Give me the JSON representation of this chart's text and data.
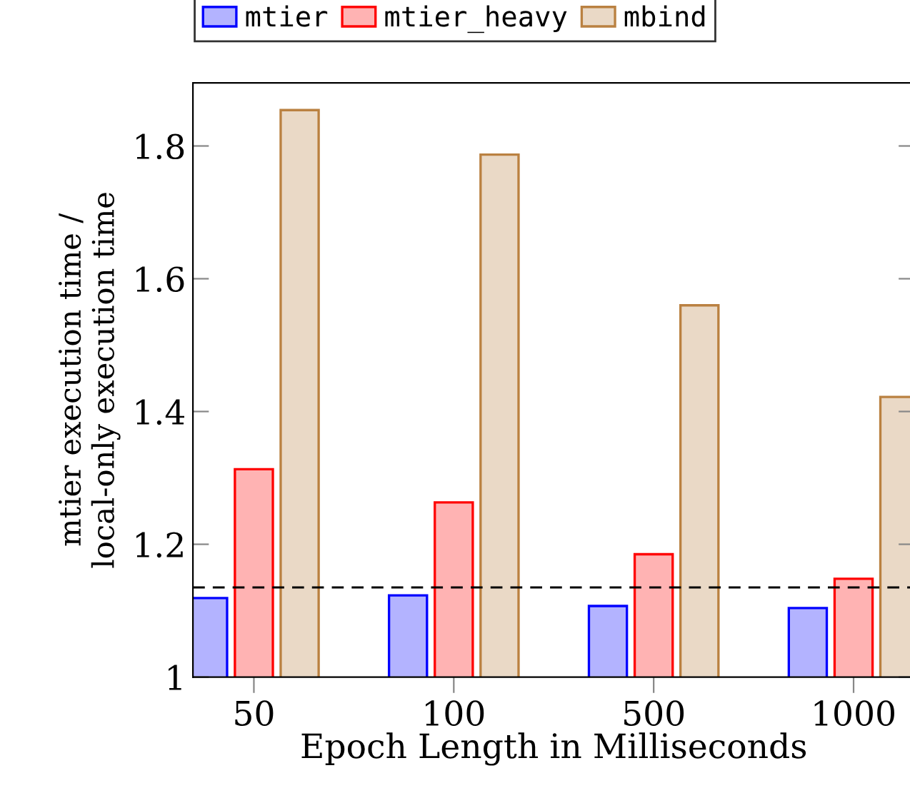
{
  "chart_data": {
    "type": "bar",
    "xlabel": "Epoch Length in Milliseconds",
    "ylabel": "mtier execution time /\nlocal-only execution time",
    "categories": [
      "50",
      "100",
      "500",
      "1000"
    ],
    "series": [
      {
        "name": "mtier",
        "color": "#b3b3ff",
        "values": [
          1.119,
          1.123,
          1.107,
          1.104
        ]
      },
      {
        "name": "mtier_heavy",
        "color": "#ffb3b3",
        "values": [
          1.313,
          1.263,
          1.185,
          1.148
        ]
      },
      {
        "name": "mbind",
        "color": "#ead9c6",
        "values": [
          1.854,
          1.787,
          1.56,
          1.422
        ]
      }
    ],
    "ylim": [
      1,
      1.895
    ],
    "yticks": [
      1,
      1.2,
      1.4,
      1.6,
      1.8
    ],
    "ref_lines": [
      {
        "axis": "y",
        "value": 1.135,
        "line_style": "dashed",
        "color": "#000000"
      }
    ],
    "legend": "top",
    "grid": false
  }
}
